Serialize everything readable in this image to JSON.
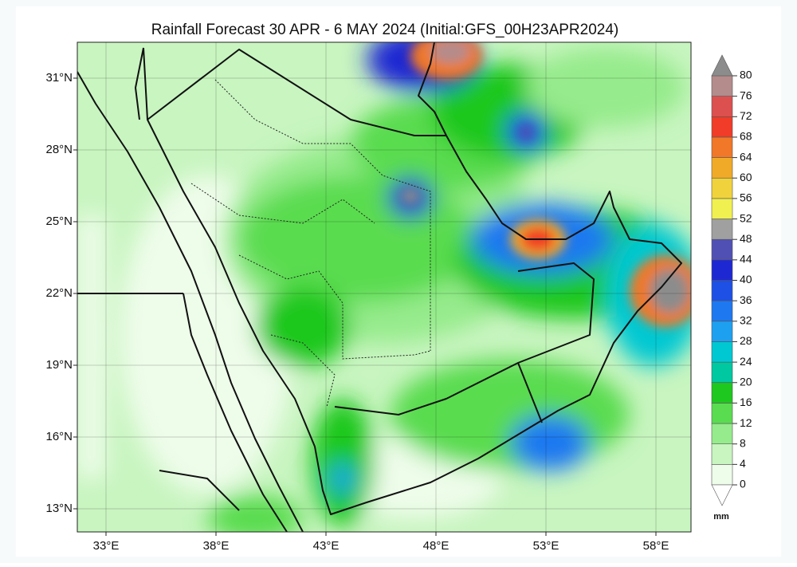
{
  "map": {
    "title": "Rainfall Forecast 30 APR - 6 MAY 2024 (Initial:GFS_00H23APR2024)",
    "lon_ticks": [
      {
        "value": 33,
        "label": "33°E"
      },
      {
        "value": 38,
        "label": "38°E"
      },
      {
        "value": 43,
        "label": "43°E"
      },
      {
        "value": 48,
        "label": "48°E"
      },
      {
        "value": 53,
        "label": "53°E"
      },
      {
        "value": 58,
        "label": "58°E"
      }
    ],
    "lat_ticks": [
      {
        "value": 31,
        "label": "31°N"
      },
      {
        "value": 28,
        "label": "28°N"
      },
      {
        "value": 25,
        "label": "25°N"
      },
      {
        "value": 22,
        "label": "22°N"
      },
      {
        "value": 19,
        "label": "19°N"
      },
      {
        "value": 16,
        "label": "16°N"
      },
      {
        "value": 13,
        "label": "13°N"
      }
    ],
    "colorbar": {
      "levels": [
        0,
        4,
        8,
        12,
        16,
        20,
        24,
        28,
        32,
        36,
        40,
        44,
        48,
        52,
        56,
        60,
        64,
        68,
        72,
        76,
        80
      ],
      "colors": [
        "#eefcea",
        "#c8f5c0",
        "#96eb8c",
        "#5adc50",
        "#1ec81e",
        "#00c8a0",
        "#00c8d2",
        "#1ea0f0",
        "#1e78f0",
        "#1e50e6",
        "#1e28d2",
        "#5050b4",
        "#a0a0a0",
        "#f0f050",
        "#f0d23c",
        "#f0aa28",
        "#f07828",
        "#f03c28",
        "#dc5050",
        "#b48c8c"
      ],
      "over_color": "#8c8c8c",
      "under_color": "#ffffff",
      "unit": "mm"
    }
  }
}
